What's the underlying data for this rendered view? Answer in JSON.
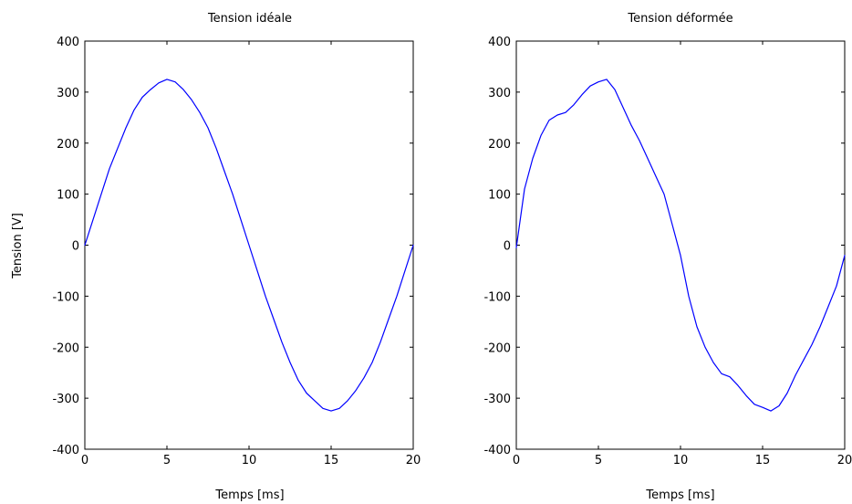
{
  "chart_data": [
    {
      "type": "line",
      "title": "Tension idéale",
      "xlabel": "Temps [ms]",
      "ylabel": "Tension [V]",
      "xlim": [
        0,
        20
      ],
      "ylim": [
        -400,
        400
      ],
      "xticks": [
        0,
        5,
        10,
        15,
        20
      ],
      "yticks": [
        400,
        300,
        200,
        100,
        0,
        -100,
        -200,
        -300,
        -400
      ],
      "grid": false,
      "series": [
        {
          "color": "#0000ff",
          "x": [
            0,
            0.5,
            1,
            1.5,
            2,
            2.5,
            3,
            3.5,
            4,
            4.5,
            5,
            5.5,
            6,
            6.5,
            7,
            7.5,
            8,
            8.5,
            9,
            9.5,
            10,
            10.5,
            11,
            11.5,
            12,
            12.5,
            13,
            13.5,
            14,
            14.5,
            15,
            15.5,
            16,
            16.5,
            17,
            17.5,
            18,
            18.5,
            19,
            19.5,
            20
          ],
          "y": [
            0,
            50,
            100,
            150,
            190,
            230,
            265,
            290,
            305,
            318,
            325,
            320,
            305,
            285,
            260,
            230,
            190,
            145,
            100,
            50,
            0,
            -50,
            -100,
            -145,
            -190,
            -230,
            -265,
            -290,
            -305,
            -320,
            -325,
            -320,
            -305,
            -285,
            -260,
            -230,
            -190,
            -145,
            -100,
            -50,
            0
          ]
        }
      ]
    },
    {
      "type": "line",
      "title": "Tension déformée",
      "xlabel": "Temps [ms]",
      "ylabel": "",
      "xlim": [
        0,
        20
      ],
      "ylim": [
        -400,
        400
      ],
      "xticks": [
        0,
        5,
        10,
        15,
        20
      ],
      "yticks": [
        400,
        300,
        200,
        100,
        0,
        -100,
        -200,
        -300,
        -400
      ],
      "grid": false,
      "series": [
        {
          "color": "#0000ff",
          "x": [
            0,
            0.5,
            1,
            1.5,
            2,
            2.5,
            3,
            3.5,
            4,
            4.5,
            5,
            5.5,
            6,
            6.5,
            7,
            7.5,
            8,
            8.5,
            9,
            9.5,
            10,
            10.5,
            11,
            11.5,
            12,
            12.5,
            13,
            13.5,
            14,
            14.5,
            15,
            15.5,
            16,
            16.5,
            17,
            17.5,
            18,
            18.5,
            19,
            19.5,
            20
          ],
          "y": [
            -5,
            110,
            170,
            215,
            245,
            255,
            260,
            275,
            295,
            312,
            320,
            325,
            305,
            270,
            235,
            205,
            170,
            135,
            100,
            40,
            -20,
            -100,
            -160,
            -200,
            -230,
            -252,
            -258,
            -275,
            -295,
            -312,
            -318,
            -325,
            -315,
            -290,
            -255,
            -225,
            -195,
            -160,
            -120,
            -80,
            -20
          ]
        }
      ]
    }
  ]
}
